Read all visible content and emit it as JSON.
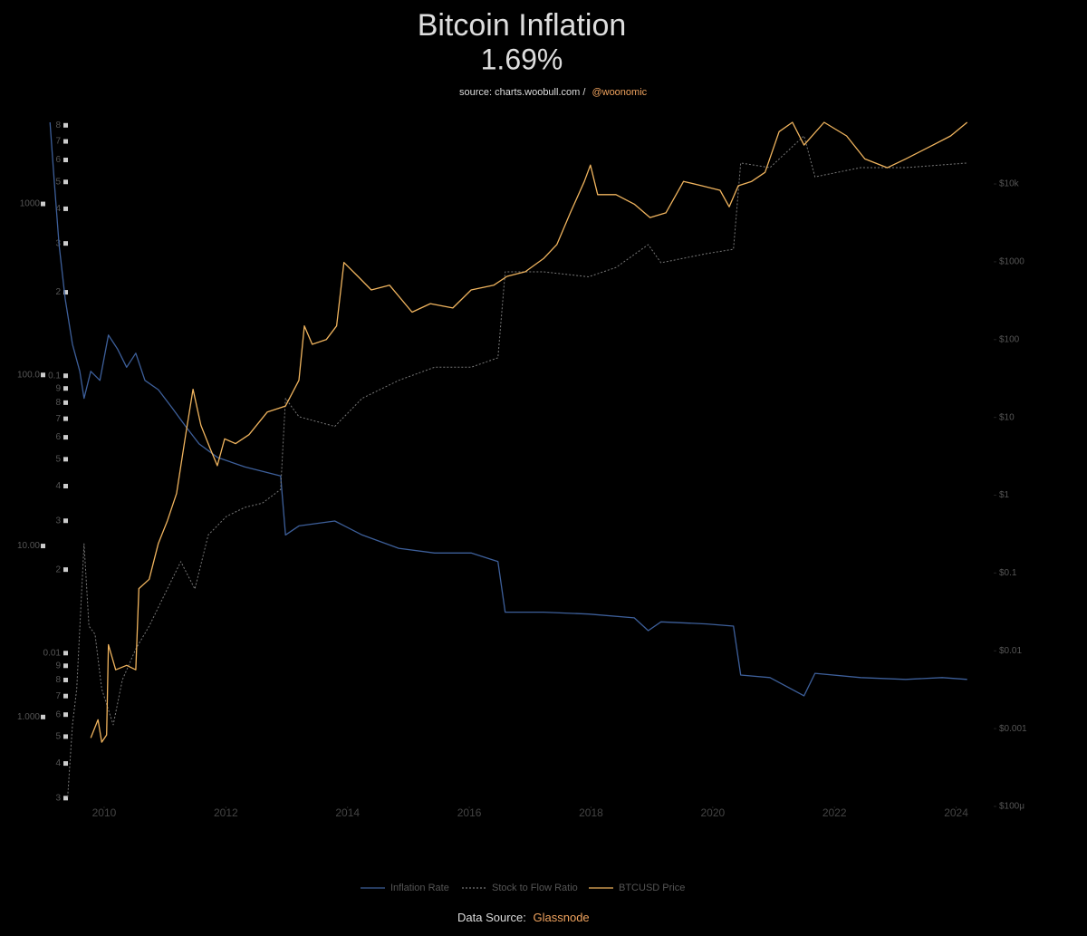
{
  "chart_data": {
    "type": "line",
    "title": "Bitcoin Inflation",
    "subtitle": "1.69%",
    "source": "source: charts.woobull.com /",
    "source_handle": "@woonomic",
    "footer": "Data Source:",
    "footer_source": "Glassnode",
    "log_y": true,
    "log_y2": true,
    "log_y3": true,
    "grid": false,
    "legend": "bottom",
    "xlim": [
      2009.1,
      2024.2
    ],
    "xticks": [
      2010,
      2012,
      2014,
      2016,
      2018,
      2020,
      2022,
      2024
    ],
    "ylim": [
      0.3,
      3000
    ],
    "yticks": [
      {
        "value": 1000,
        "label": "1000"
      },
      {
        "value": 100,
        "label": "100.0"
      },
      {
        "value": 10,
        "label": "10.00"
      },
      {
        "value": 1,
        "label": "1.000"
      }
    ],
    "y3lim": [
      0.0028,
      0.82
    ],
    "y3ticks": [
      {
        "value": 0.8,
        "label": "8"
      },
      {
        "value": 0.7,
        "label": "7"
      },
      {
        "value": 0.6,
        "label": "6"
      },
      {
        "value": 0.5,
        "label": "5"
      },
      {
        "value": 0.4,
        "label": "4"
      },
      {
        "value": 0.3,
        "label": "3"
      },
      {
        "value": 0.2,
        "label": "2"
      },
      0.1,
      {
        "value": 0.09,
        "label": "9"
      },
      {
        "value": 0.08,
        "label": "8"
      },
      {
        "value": 0.07,
        "label": "7"
      },
      {
        "value": 0.06,
        "label": "6"
      },
      {
        "value": 0.05,
        "label": "5"
      },
      {
        "value": 0.04,
        "label": "4"
      },
      {
        "value": 0.03,
        "label": "3"
      },
      {
        "value": 0.02,
        "label": "2"
      },
      0.01,
      {
        "value": 0.009,
        "label": "9"
      },
      {
        "value": 0.008,
        "label": "8"
      },
      {
        "value": 0.007,
        "label": "7"
      },
      {
        "value": 0.006,
        "label": "6"
      },
      {
        "value": 0.005,
        "label": "5"
      },
      {
        "value": 0.004,
        "label": "4"
      },
      {
        "value": 0.003,
        "label": "3"
      }
    ],
    "y2lim": [
      0.0001,
      62000
    ],
    "y2ticks": [
      {
        "value": 10000,
        "label": "$10k"
      },
      {
        "value": 1000,
        "label": "$1000"
      },
      {
        "value": 100,
        "label": "$100"
      },
      {
        "value": 10,
        "label": "$10"
      },
      {
        "value": 1,
        "label": "$1"
      },
      {
        "value": 0.1,
        "label": "$0.1"
      },
      {
        "value": 0.01,
        "label": "$0.01"
      },
      {
        "value": 0.001,
        "label": "$0.001"
      },
      {
        "value": 0.0001,
        "label": "$100μ"
      }
    ],
    "series": [
      {
        "name": "Inflation Rate",
        "color": "#3d5f9a",
        "dash": false,
        "x": [
          2009.11,
          2009.18,
          2009.26,
          2009.36,
          2009.48,
          2009.6,
          2009.67,
          2009.78,
          2009.93,
          2010.07,
          2010.22,
          2010.37,
          2010.52,
          2010.67,
          2010.89,
          2011.12,
          2011.34,
          2011.56,
          2011.86,
          2012.31,
          2012.9,
          2012.98,
          2013.2,
          2013.79,
          2014.24,
          2014.84,
          2015.43,
          2016.03,
          2016.47,
          2016.59,
          2017.22,
          2017.96,
          2018.71,
          2018.94,
          2019.15,
          2019.9,
          2020.34,
          2020.46,
          2020.94,
          2021.5,
          2021.68,
          2022.43,
          2023.17,
          2023.77,
          2024.18
        ],
        "values": [
          3000,
          1358,
          578,
          278,
          151,
          105,
          73,
          105,
          93,
          171,
          142,
          111,
          134,
          93,
          82,
          64,
          50,
          39.5,
          33,
          29,
          25.7,
          11.6,
          13.1,
          14,
          11.6,
          9.7,
          9.1,
          9.1,
          8.1,
          4.1,
          4.1,
          4.0,
          3.8,
          3.2,
          3.6,
          3.5,
          3.4,
          1.76,
          1.7,
          1.33,
          1.8,
          1.7,
          1.66,
          1.7,
          1.66
        ]
      },
      {
        "name": "Stock to Flow Ratio",
        "color": "#777777",
        "dash": true,
        "x": [
          2009.4,
          2009.48,
          2009.55,
          2009.67,
          2009.75,
          2009.85,
          2009.96,
          2010.15,
          2010.3,
          2010.52,
          2010.74,
          2010.97,
          2011.26,
          2011.49,
          2011.71,
          2012.01,
          2012.31,
          2012.6,
          2012.9,
          2012.98,
          2013.2,
          2013.79,
          2014.24,
          2014.84,
          2015.43,
          2016.03,
          2016.47,
          2016.59,
          2017.22,
          2017.96,
          2018.41,
          2018.94,
          2019.15,
          2019.9,
          2020.34,
          2020.46,
          2020.94,
          2021.5,
          2021.68,
          2022.43,
          2023.17,
          2024.18
        ],
        "values": [
          0.34,
          0.9,
          1.46,
          10.3,
          3.4,
          3.05,
          1.46,
          0.9,
          1.65,
          2.5,
          3.4,
          5,
          8.1,
          5.6,
          11.6,
          14.9,
          16.8,
          17.8,
          21.4,
          73,
          57,
          50,
          73,
          93,
          111,
          111,
          126,
          401,
          401,
          375,
          425,
          578,
          453,
          512,
          543,
          1734,
          1630,
          2500,
          1440,
          1630,
          1630,
          1734
        ]
      },
      {
        "name": "BTCUSD Price",
        "color": "#f0b45e",
        "dash": false,
        "axis": "y2",
        "x": [
          2009.78,
          2009.9,
          2009.96,
          2010.04,
          2010.07,
          2010.19,
          2010.37,
          2010.52,
          2010.57,
          2010.74,
          2010.89,
          2011.04,
          2011.19,
          2011.34,
          2011.46,
          2011.59,
          2011.74,
          2011.86,
          2011.98,
          2012.16,
          2012.38,
          2012.68,
          2012.98,
          2013.2,
          2013.29,
          2013.42,
          2013.65,
          2013.82,
          2013.94,
          2014.17,
          2014.39,
          2014.69,
          2015.06,
          2015.36,
          2015.73,
          2016.03,
          2016.4,
          2016.62,
          2016.92,
          2017.22,
          2017.44,
          2017.66,
          2017.89,
          2017.99,
          2018.11,
          2018.41,
          2018.71,
          2018.97,
          2019.23,
          2019.52,
          2019.82,
          2020.12,
          2020.27,
          2020.42,
          2020.64,
          2020.86,
          2021.09,
          2021.31,
          2021.5,
          2021.83,
          2022.2,
          2022.5,
          2022.87,
          2023.17,
          2023.62,
          2023.91,
          2024.18
        ],
        "values": [
          0.00076,
          0.0013,
          0.00067,
          0.00083,
          0.012,
          0.0057,
          0.0065,
          0.0057,
          0.063,
          0.083,
          0.24,
          0.47,
          1.05,
          6,
          23,
          7.9,
          4,
          2.4,
          5.3,
          4.6,
          6,
          11.7,
          14,
          30,
          150,
          87,
          100,
          150,
          980,
          650,
          435,
          500,
          225,
          290,
          255,
          435,
          500,
          650,
          745,
          1100,
          1670,
          4260,
          10800,
          17500,
          7300,
          7300,
          5500,
          3700,
          4260,
          10800,
          9500,
          8300,
          5100,
          9500,
          10800,
          14100,
          47000,
          62000,
          31600,
          62000,
          41500,
          21000,
          16200,
          21000,
          31600,
          41500,
          62000
        ]
      }
    ]
  }
}
